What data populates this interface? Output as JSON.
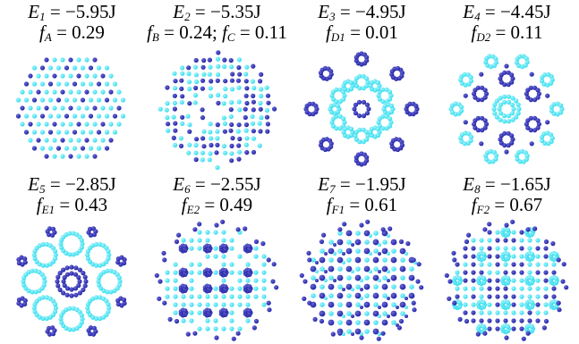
{
  "colors": {
    "dark": "#2323a6",
    "light": "#33ddee",
    "dark_hi": "#6a6ad6",
    "light_hi": "#aaf4fb"
  },
  "panels": [
    {
      "energy_sub": "1",
      "energy_value": " = −5.95J",
      "f_terms": [
        {
          "sub": "A",
          "value": " = 0.29"
        }
      ],
      "pattern": "A"
    },
    {
      "energy_sub": "2",
      "energy_value": " = −5.35J",
      "f_terms": [
        {
          "sub": "B",
          "value": " = 0.24; "
        },
        {
          "sub": "C",
          "value": " = 0.11"
        }
      ],
      "pattern": "BC"
    },
    {
      "energy_sub": "3",
      "energy_value": " = −4.95J",
      "f_terms": [
        {
          "sub": "D1",
          "value": " = 0.01"
        }
      ],
      "pattern": "D1"
    },
    {
      "energy_sub": "4",
      "energy_value": " = −4.45J",
      "f_terms": [
        {
          "sub": "D2",
          "value": " = 0.11"
        }
      ],
      "pattern": "D2"
    },
    {
      "energy_sub": "5",
      "energy_value": " = −2.85J",
      "f_terms": [
        {
          "sub": "E1",
          "value": " = 0.43"
        }
      ],
      "pattern": "E1"
    },
    {
      "energy_sub": "6",
      "energy_value": " = −2.55J",
      "f_terms": [
        {
          "sub": "E2",
          "value": " = 0.49"
        }
      ],
      "pattern": "E2"
    },
    {
      "energy_sub": "7",
      "energy_value": " = −1.95J",
      "f_terms": [
        {
          "sub": "F1",
          "value": " = 0.61"
        }
      ],
      "pattern": "F1"
    },
    {
      "energy_sub": "8",
      "energy_value": " = −1.65J",
      "f_terms": [
        {
          "sub": "F2",
          "value": " = 0.67"
        }
      ],
      "pattern": "F2"
    }
  ]
}
